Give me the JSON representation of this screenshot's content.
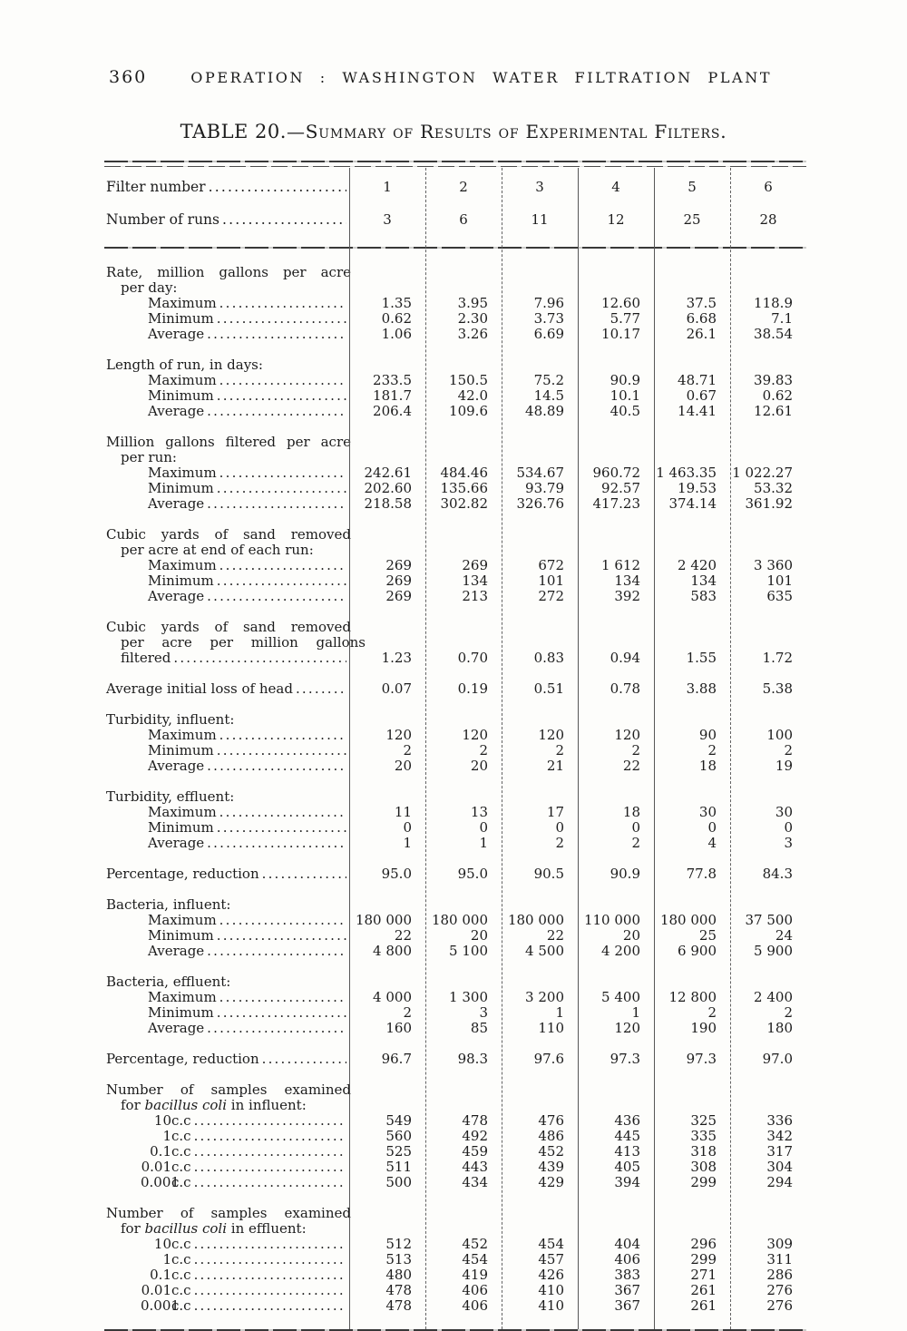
{
  "page": {
    "page_number": "360",
    "running_header": "OPERATION : WASHINGTON WATER FILTRATION PLANT",
    "title_prefix": "TABLE 20.",
    "title_rest": "—Summary of Results of Experimental Filters."
  },
  "table": {
    "header_rows": [
      {
        "label": "Filter number",
        "values": [
          "1",
          "2",
          "3",
          "4",
          "5",
          "6"
        ]
      },
      {
        "label": "Number of runs",
        "values": [
          "3",
          "6",
          "11",
          "12",
          "25",
          "28"
        ]
      }
    ],
    "sections": [
      {
        "heading": [
          {
            "segments": [
              {
                "t": "Rate, million gallons per acre"
              }
            ],
            "just": true
          },
          {
            "segments": [
              {
                "t": "per day:"
              }
            ],
            "indent": 1
          }
        ],
        "rows": [
          {
            "label": "Maximum",
            "indent": 2,
            "values": [
              "1.35",
              "3.95",
              "7.96",
              "12.60",
              "37.5",
              "118.9"
            ]
          },
          {
            "label": "Minimum",
            "indent": 2,
            "values": [
              "0.62",
              "2.30",
              "3.73",
              "5.77",
              "6.68",
              "7.1"
            ]
          },
          {
            "label": "Average",
            "indent": 2,
            "values": [
              "1.06",
              "3.26",
              "6.69",
              "10.17",
              "26.1",
              "38.54"
            ]
          }
        ]
      },
      {
        "heading": [
          {
            "segments": [
              {
                "t": "Length of run, in days:"
              }
            ]
          }
        ],
        "rows": [
          {
            "label": "Maximum",
            "indent": 2,
            "values": [
              "233.5",
              "150.5",
              "75.2",
              "90.9",
              "48.71",
              "39.83"
            ]
          },
          {
            "label": "Minimum",
            "indent": 2,
            "values": [
              "181.7",
              "42.0",
              "14.5",
              "10.1",
              "0.67",
              "0.62"
            ]
          },
          {
            "label": "Average",
            "indent": 2,
            "values": [
              "206.4",
              "109.6",
              "48.89",
              "40.5",
              "14.41",
              "12.61"
            ]
          }
        ]
      },
      {
        "heading": [
          {
            "segments": [
              {
                "t": "Million gallons filtered per acre"
              }
            ],
            "just": true
          },
          {
            "segments": [
              {
                "t": "per run:"
              }
            ],
            "indent": 1
          }
        ],
        "rows": [
          {
            "label": "Maximum",
            "indent": 2,
            "values": [
              "242.61",
              "484.46",
              "534.67",
              "960.72",
              "1 463.35",
              "1 022.27"
            ]
          },
          {
            "label": "Minimum",
            "indent": 2,
            "values": [
              "202.60",
              "135.66",
              "93.79",
              "92.57",
              "19.53",
              "53.32"
            ]
          },
          {
            "label": "Average",
            "indent": 2,
            "values": [
              "218.58",
              "302.82",
              "326.76",
              "417.23",
              "374.14",
              "361.92"
            ]
          }
        ]
      },
      {
        "heading": [
          {
            "segments": [
              {
                "t": "Cubic yards of sand removed"
              }
            ],
            "just": true
          },
          {
            "segments": [
              {
                "t": "per acre at end of each run:"
              }
            ],
            "indent": 1
          }
        ],
        "rows": [
          {
            "label": "Maximum",
            "indent": 2,
            "values": [
              "269",
              "269",
              "672",
              "1 612",
              "2 420",
              "3 360"
            ]
          },
          {
            "label": "Minimum",
            "indent": 2,
            "values": [
              "269",
              "134",
              "101",
              "134",
              "134",
              "101"
            ]
          },
          {
            "label": "Average",
            "indent": 2,
            "values": [
              "269",
              "213",
              "272",
              "392",
              "583",
              "635"
            ]
          }
        ]
      },
      {
        "heading": [
          {
            "segments": [
              {
                "t": "Cubic yards of sand removed"
              }
            ],
            "just": true
          },
          {
            "segments": [
              {
                "t": "per acre per million gallons"
              }
            ],
            "indent": 1,
            "just": true
          }
        ],
        "rows": [
          {
            "label": "filtered",
            "indent": 1,
            "values": [
              "1.23",
              "0.70",
              "0.83",
              "0.94",
              "1.55",
              "1.72"
            ]
          }
        ]
      },
      {
        "heading": [],
        "rows": [
          {
            "label": "Average initial loss of head",
            "indent": 0,
            "values": [
              "0.07",
              "0.19",
              "0.51",
              "0.78",
              "3.88",
              "5.38"
            ]
          }
        ]
      },
      {
        "heading": [
          {
            "segments": [
              {
                "t": "Turbidity, influent:"
              }
            ]
          }
        ],
        "rows": [
          {
            "label": "Maximum",
            "indent": 2,
            "values": [
              "120",
              "120",
              "120",
              "120",
              "90",
              "100"
            ]
          },
          {
            "label": "Minimum",
            "indent": 2,
            "values": [
              "2",
              "2",
              "2",
              "2",
              "2",
              "2"
            ]
          },
          {
            "label": "Average",
            "indent": 2,
            "values": [
              "20",
              "20",
              "21",
              "22",
              "18",
              "19"
            ]
          }
        ]
      },
      {
        "heading": [
          {
            "segments": [
              {
                "t": "Turbidity, effluent:"
              }
            ]
          }
        ],
        "rows": [
          {
            "label": "Maximum",
            "indent": 2,
            "values": [
              "11",
              "13",
              "17",
              "18",
              "30",
              "30"
            ]
          },
          {
            "label": "Minimum",
            "indent": 2,
            "values": [
              "0",
              "0",
              "0",
              "0",
              "0",
              "0"
            ]
          },
          {
            "label": "Average",
            "indent": 2,
            "values": [
              "1",
              "1",
              "2",
              "2",
              "4",
              "3"
            ]
          }
        ]
      },
      {
        "heading": [],
        "rows": [
          {
            "label": "Percentage, reduction",
            "indent": 0,
            "values": [
              "95.0",
              "95.0",
              "90.5",
              "90.9",
              "77.8",
              "84.3"
            ]
          }
        ]
      },
      {
        "heading": [
          {
            "segments": [
              {
                "t": "Bacteria, influent:"
              }
            ]
          }
        ],
        "rows": [
          {
            "label": "Maximum",
            "indent": 2,
            "values": [
              "180 000",
              "180 000",
              "180 000",
              "110 000",
              "180 000",
              "37 500"
            ]
          },
          {
            "label": "Minimum",
            "indent": 2,
            "values": [
              "22",
              "20",
              "22",
              "20",
              "25",
              "24"
            ]
          },
          {
            "label": "Average",
            "indent": 2,
            "values": [
              "4 800",
              "5 100",
              "4 500",
              "4 200",
              "6 900",
              "5 900"
            ]
          }
        ]
      },
      {
        "heading": [
          {
            "segments": [
              {
                "t": "Bacteria, effluent:"
              }
            ]
          }
        ],
        "rows": [
          {
            "label": "Maximum",
            "indent": 2,
            "values": [
              "4 000",
              "1 300",
              "3 200",
              "5 400",
              "12 800",
              "2 400"
            ]
          },
          {
            "label": "Minimum",
            "indent": 2,
            "values": [
              "2",
              "3",
              "1",
              "1",
              "2",
              "2"
            ]
          },
          {
            "label": "Average",
            "indent": 2,
            "values": [
              "160",
              "85",
              "110",
              "120",
              "190",
              "180"
            ]
          }
        ]
      },
      {
        "heading": [],
        "rows": [
          {
            "label": "Percentage, reduction",
            "indent": 0,
            "values": [
              "96.7",
              "98.3",
              "97.6",
              "97.3",
              "97.3",
              "97.0"
            ]
          }
        ]
      },
      {
        "heading": [
          {
            "segments": [
              {
                "t": "Number of samples examined"
              }
            ],
            "just": true
          },
          {
            "segments": [
              {
                "t": "for "
              },
              {
                "t": "bacillus coli",
                "i": true
              },
              {
                "t": " in influent:"
              }
            ],
            "indent": 1
          }
        ],
        "rows": [
          {
            "label": "10 c.c",
            "indent": 3,
            "cc": true,
            "values": [
              "549",
              "478",
              "476",
              "436",
              "325",
              "336"
            ]
          },
          {
            "label": "1 c.c",
            "indent": 3,
            "cc": true,
            "values": [
              "560",
              "492",
              "486",
              "445",
              "335",
              "342"
            ]
          },
          {
            "label": "0.1 c.c",
            "indent": 3,
            "cc": true,
            "values": [
              "525",
              "459",
              "452",
              "413",
              "318",
              "317"
            ]
          },
          {
            "label": "0.01 c.c",
            "indent": 3,
            "cc": true,
            "values": [
              "511",
              "443",
              "439",
              "405",
              "308",
              "304"
            ]
          },
          {
            "label": "0.001 c.c",
            "indent": 3,
            "cc": true,
            "values": [
              "500",
              "434",
              "429",
              "394",
              "299",
              "294"
            ]
          }
        ]
      },
      {
        "heading": [
          {
            "segments": [
              {
                "t": "Number of samples examined"
              }
            ],
            "just": true
          },
          {
            "segments": [
              {
                "t": "for "
              },
              {
                "t": "bacillus coli",
                "i": true
              },
              {
                "t": " in effluent:"
              }
            ],
            "indent": 1
          }
        ],
        "rows": [
          {
            "label": "10 c.c",
            "indent": 3,
            "cc": true,
            "values": [
              "512",
              "452",
              "454",
              "404",
              "296",
              "309"
            ]
          },
          {
            "label": "1 c.c",
            "indent": 3,
            "cc": true,
            "values": [
              "513",
              "454",
              "457",
              "406",
              "299",
              "311"
            ]
          },
          {
            "label": "0.1 c.c",
            "indent": 3,
            "cc": true,
            "values": [
              "480",
              "419",
              "426",
              "383",
              "271",
              "286"
            ]
          },
          {
            "label": "0.01 c.c",
            "indent": 3,
            "cc": true,
            "values": [
              "478",
              "406",
              "410",
              "367",
              "261",
              "276"
            ]
          },
          {
            "label": "0.001 c.c",
            "indent": 3,
            "cc": true,
            "values": [
              "478",
              "406",
              "410",
              "367",
              "261",
              "276"
            ]
          }
        ]
      }
    ]
  }
}
